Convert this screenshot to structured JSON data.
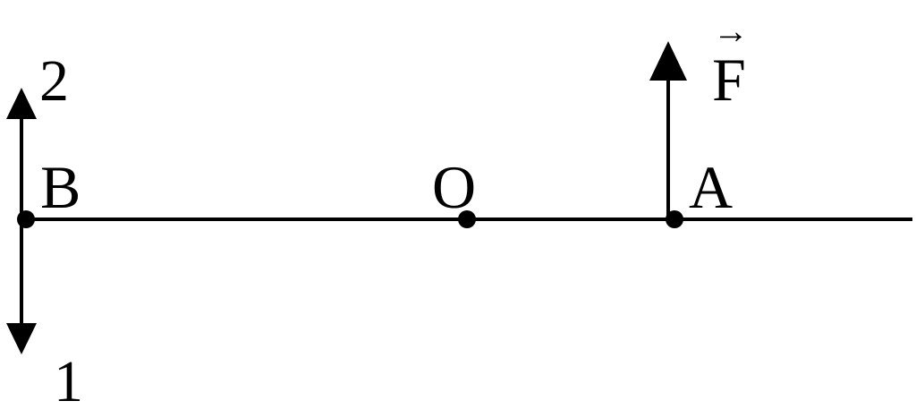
{
  "labels": {
    "point_b": "B",
    "point_o": "O",
    "point_a": "A",
    "direction_up": "2",
    "direction_down": "1",
    "force": "F",
    "vector_mark": "→"
  },
  "colors": {
    "ink": "#000000",
    "background": "#ffffff"
  }
}
